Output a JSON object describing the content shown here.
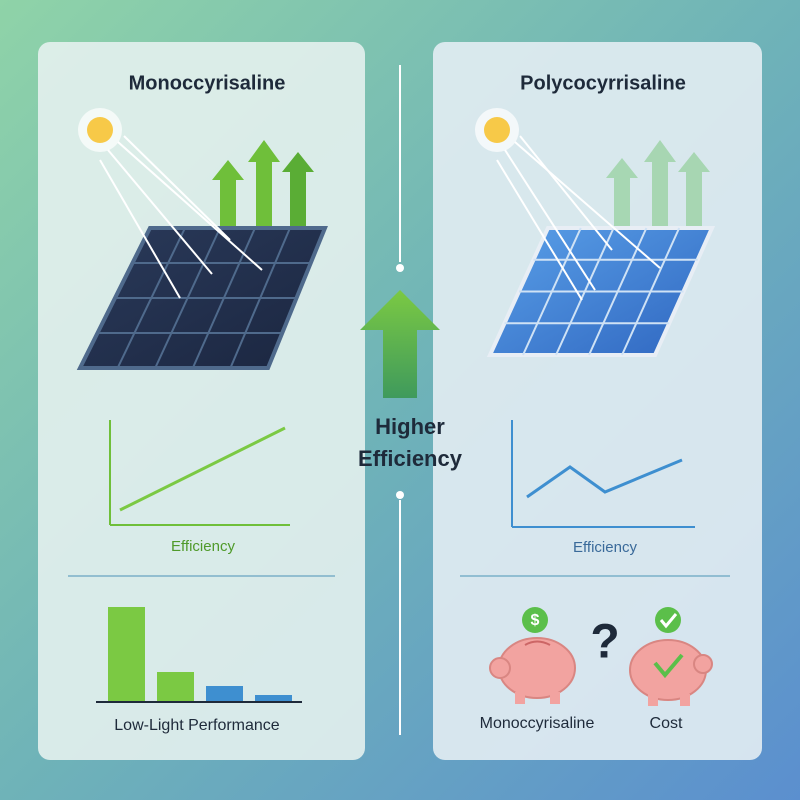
{
  "left_panel": {
    "title": "Monoccyrisaline",
    "chart_label": "Efficiency",
    "bar_label": "Low-Light Performance"
  },
  "center": {
    "label_lines": [
      "Higher",
      "Efficiency"
    ]
  },
  "right_panel": {
    "title": "Polycocyrrisaline",
    "chart_label": "Efficiency",
    "coin_symbol": "$",
    "question": "?",
    "pig_labels": [
      "Monoccyrisaline",
      "Cost"
    ]
  }
}
